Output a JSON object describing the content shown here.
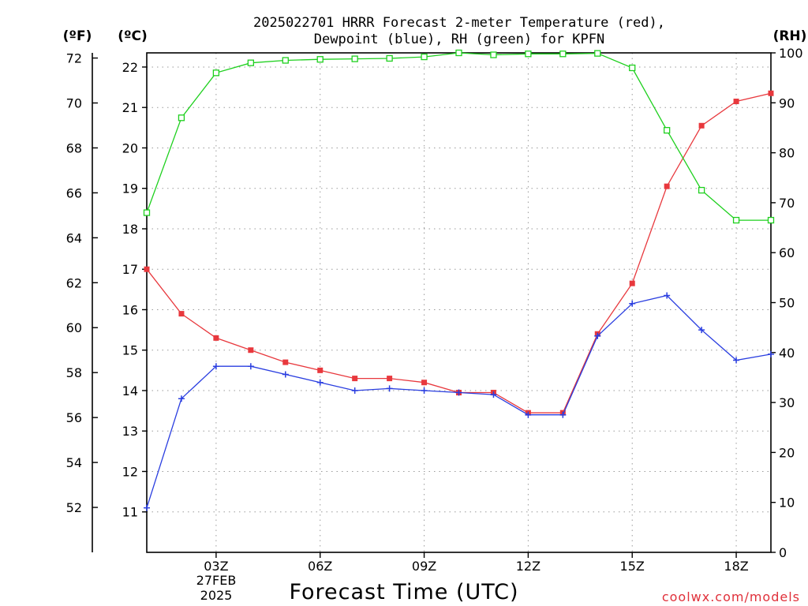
{
  "chart_data": {
    "type": "line",
    "title_lines": [
      "2025022701 HRRR Forecast 2-meter Temperature (red),",
      "Dewpoint (blue), RH (green) for KPFN"
    ],
    "xlabel": "Forecast Time (UTC)",
    "x_hours": [
      1,
      2,
      3,
      4,
      5,
      6,
      7,
      8,
      9,
      10,
      11,
      12,
      13,
      14,
      15,
      16,
      17,
      18,
      19
    ],
    "xlim": [
      1,
      19
    ],
    "x_ticks": [
      3,
      6,
      9,
      12,
      15,
      18
    ],
    "x_tick_labels": [
      "03Z",
      "06Z",
      "09Z",
      "12Z",
      "15Z",
      "18Z"
    ],
    "x_date_label": [
      "27FEB",
      "2025"
    ],
    "left_axis_c": {
      "label": "(ºC)",
      "ylim": [
        10.0,
        22.35
      ],
      "ticks": [
        11,
        12,
        13,
        14,
        15,
        16,
        17,
        18,
        19,
        20,
        21,
        22
      ]
    },
    "left_axis_f": {
      "label": "(ºF)",
      "ticks": [
        52,
        54,
        56,
        58,
        60,
        62,
        64,
        66,
        68,
        70,
        72
      ]
    },
    "right_axis_rh": {
      "label": "(RH)",
      "ylim": [
        0,
        100
      ],
      "ticks": [
        0,
        10,
        20,
        30,
        40,
        50,
        60,
        70,
        80,
        90,
        100
      ]
    },
    "grid": true,
    "series": [
      {
        "name": "Temperature",
        "color": "#e8383d",
        "marker": "filled-square",
        "axis": "celsius",
        "values": [
          17.0,
          15.9,
          15.3,
          15.0,
          14.7,
          14.5,
          14.3,
          14.3,
          14.2,
          13.95,
          13.95,
          13.45,
          13.45,
          15.4,
          16.65,
          19.05,
          20.55,
          21.15,
          21.35
        ]
      },
      {
        "name": "Dewpoint",
        "color": "#2a3ee0",
        "marker": "plus",
        "axis": "celsius",
        "values": [
          11.1,
          13.8,
          14.6,
          14.6,
          14.4,
          14.2,
          14.0,
          14.05,
          14.0,
          13.95,
          13.9,
          13.4,
          13.4,
          15.35,
          16.15,
          16.35,
          15.5,
          14.75,
          14.9
        ]
      },
      {
        "name": "RH",
        "color": "#1ed01e",
        "marker": "open-square",
        "axis": "rh",
        "values": [
          68,
          87,
          96,
          98,
          98.5,
          98.7,
          98.8,
          98.9,
          99.2,
          100,
          99.6,
          99.8,
          99.8,
          99.9,
          97,
          84.5,
          72.5,
          66.5,
          66.5
        ]
      }
    ]
  },
  "credit": "coolwx.com/models"
}
